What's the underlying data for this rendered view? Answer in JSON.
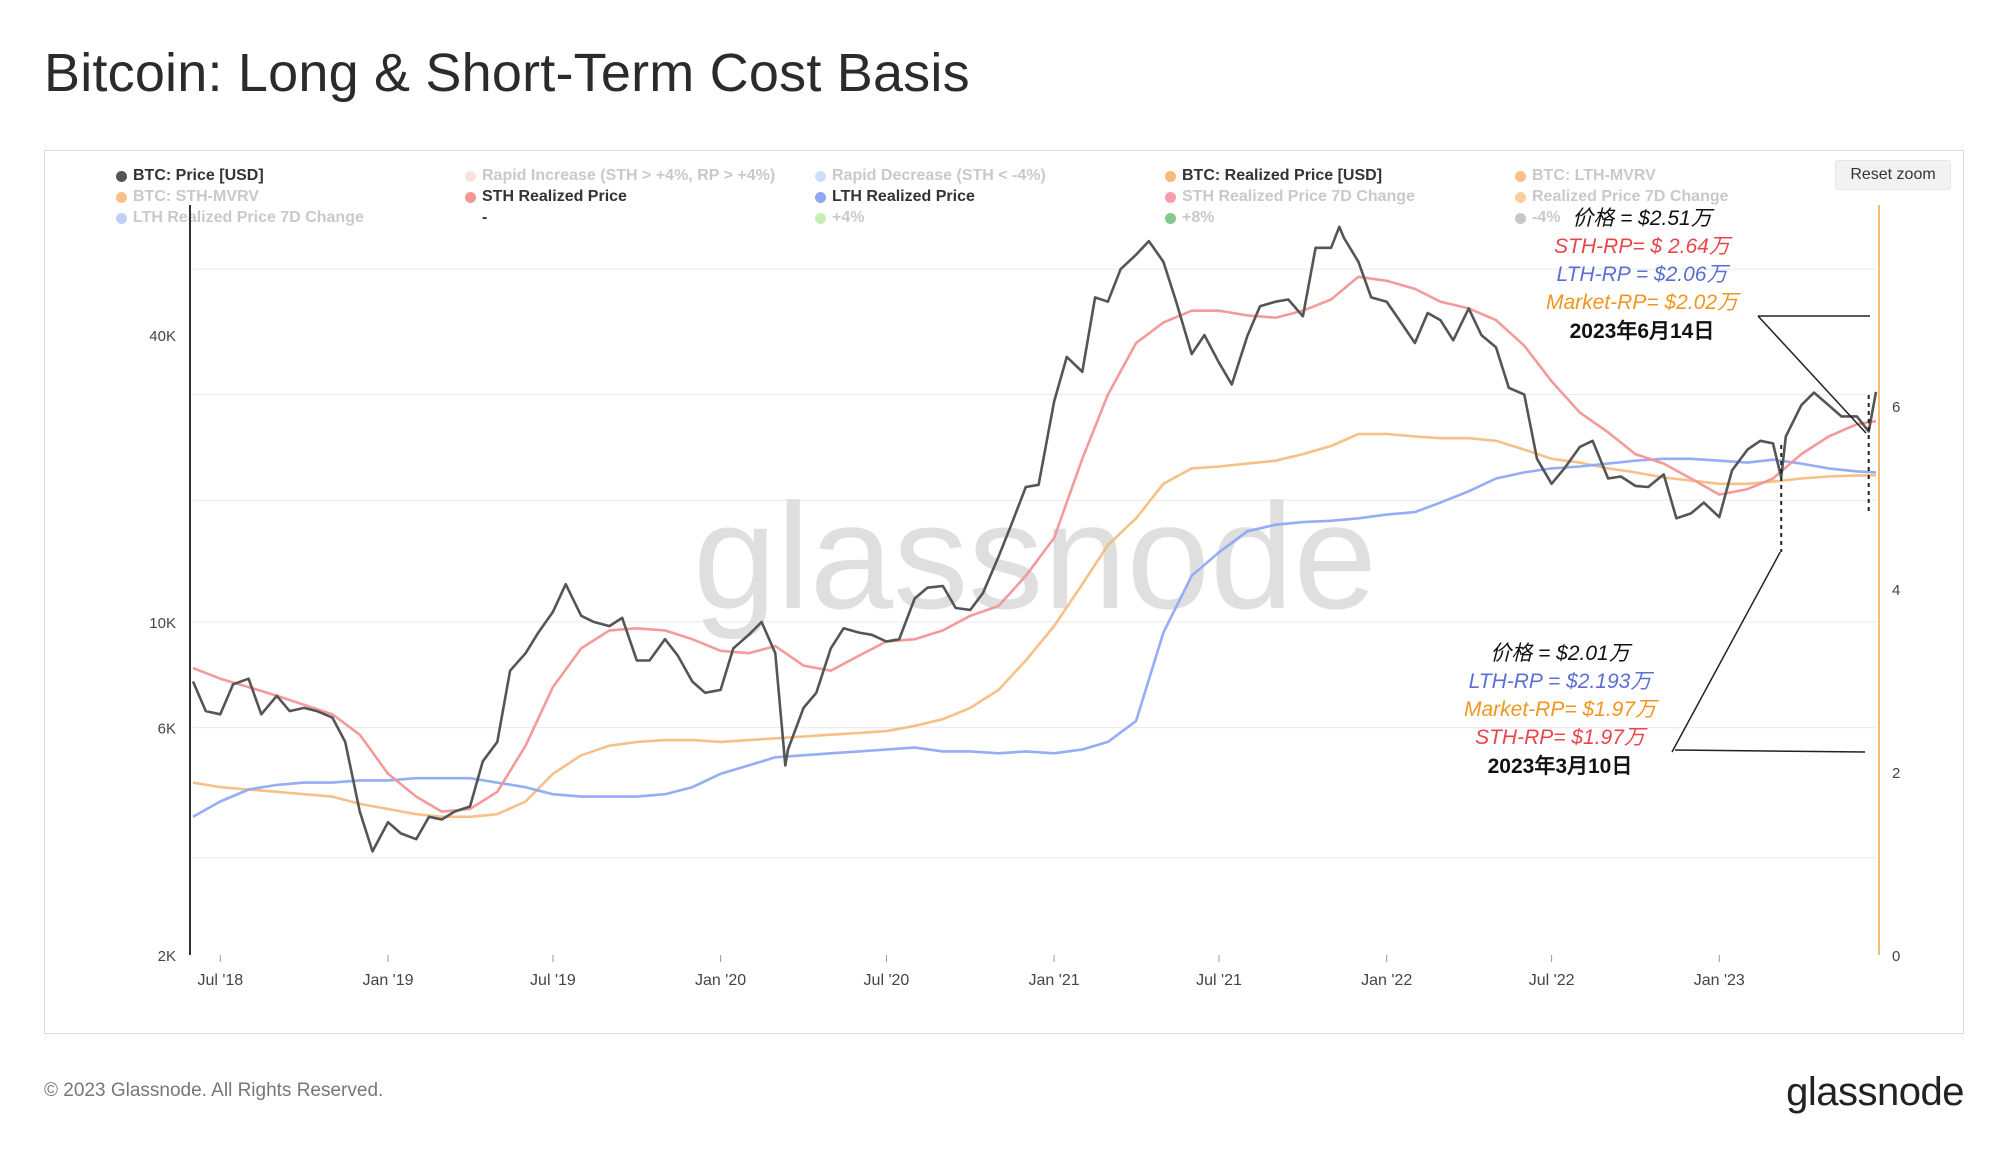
{
  "title": "Bitcoin: Long & Short-Term Cost Basis",
  "reset_zoom": "Reset zoom",
  "watermark": "glassnode",
  "footer": "© 2023 Glassnode. All Rights Reserved.",
  "brand": "glassnode",
  "legend": [
    {
      "label": "BTC: Price [USD]",
      "color": "#555555",
      "active": true
    },
    {
      "label": "Rapid Increase (STH > +4%, RP > +4%)",
      "color": "#f7c9c2",
      "active": false
    },
    {
      "label": "Rapid Decrease (STH < -4%)",
      "color": "#a9c3f7",
      "active": false
    },
    {
      "label": "BTC: Realized Price [USD]",
      "color": "#f5b97a",
      "active": true
    },
    {
      "label": "BTC: LTH-MVRV",
      "color": "#f08a2c",
      "active": false
    },
    {
      "label": "BTC: STH-MVRV",
      "color": "#f08a2c",
      "active": false
    },
    {
      "label": "STH Realized Price",
      "color": "#f29696",
      "active": true
    },
    {
      "label": "LTH Realized Price",
      "color": "#8fa8f5",
      "active": true
    },
    {
      "label": "STH Realized Price 7D Change",
      "color": "#f24d6b",
      "active": false
    },
    {
      "label": "Realized Price 7D Change",
      "color": "#f5a84a",
      "active": false
    },
    {
      "label": "LTH Realized Price 7D Change",
      "color": "#8fa8f5",
      "active": false
    },
    {
      "label": "-",
      "color": "#ffffff",
      "active": true
    },
    {
      "label": "+4%",
      "color": "#9be07a",
      "active": false
    },
    {
      "label": "+8%",
      "color": "#1a9b2e",
      "active": false
    },
    {
      "label": "-4%",
      "color": "#999999",
      "active": false
    }
  ],
  "annotations": {
    "june": {
      "price": "价格 = $2.51万",
      "sth": "STH-RP= $ 2.64万",
      "lth": "LTH-RP = $2.06万",
      "market": "Market-RP= $2.02万",
      "date": "2023年6月14日"
    },
    "march": {
      "price": "价格 = $2.01万",
      "lth": "LTH-RP = $2.193万",
      "market": "Market-RP= $1.97万",
      "sth": "STH-RP= $1.97万",
      "date": "2023年3月10日"
    }
  },
  "colors": {
    "price": "#555555",
    "sth": "#f29696",
    "lth": "#8fa8f5",
    "realized": "#f5b97a",
    "right_axis": "#f5b97a",
    "ann_sth": "#e8454b",
    "ann_lth": "#5a6fd6",
    "ann_market": "#f0961e"
  },
  "chart_data": {
    "type": "line",
    "title": "Bitcoin: Long & Short-Term Cost Basis",
    "x_ticks": [
      "Jul '18",
      "Jan '19",
      "Jul '19",
      "Jan '20",
      "Jul '20",
      "Jan '21",
      "Jul '21",
      "Jan '22",
      "Jul '22",
      "Jan '23"
    ],
    "y_left": {
      "scale": "log",
      "ticks": [
        "2K",
        "6K",
        "10K",
        "40K"
      ],
      "tick_values": [
        2000,
        6000,
        10000,
        40000
      ],
      "range": [
        2000,
        75000
      ]
    },
    "y_right": {
      "ticks": [
        "0",
        "2",
        "4",
        "6"
      ],
      "range": [
        0,
        8.2
      ]
    },
    "x_range": [
      "2018-06-01",
      "2023-06-22"
    ],
    "grid": true,
    "legend_position": "top",
    "series": [
      {
        "name": "BTC: Price [USD]",
        "dates": [
          "2018-06-01",
          "2018-06-15",
          "2018-07-01",
          "2018-07-15",
          "2018-08-01",
          "2018-08-15",
          "2018-09-01",
          "2018-09-15",
          "2018-10-01",
          "2018-10-15",
          "2018-11-01",
          "2018-11-15",
          "2018-12-01",
          "2018-12-15",
          "2019-01-01",
          "2019-01-15",
          "2019-02-01",
          "2019-02-15",
          "2019-03-01",
          "2019-03-15",
          "2019-04-01",
          "2019-04-15",
          "2019-05-01",
          "2019-05-15",
          "2019-06-01",
          "2019-06-15",
          "2019-07-01",
          "2019-07-15",
          "2019-08-01",
          "2019-08-15",
          "2019-09-01",
          "2019-09-15",
          "2019-10-01",
          "2019-10-15",
          "2019-11-01",
          "2019-11-15",
          "2019-12-01",
          "2019-12-15",
          "2020-01-01",
          "2020-01-15",
          "2020-02-01",
          "2020-02-15",
          "2020-03-01",
          "2020-03-12",
          "2020-03-15",
          "2020-04-01",
          "2020-04-15",
          "2020-05-01",
          "2020-05-15",
          "2020-06-01",
          "2020-06-15",
          "2020-07-01",
          "2020-07-15",
          "2020-08-01",
          "2020-08-15",
          "2020-09-01",
          "2020-09-15",
          "2020-10-01",
          "2020-10-15",
          "2020-11-01",
          "2020-11-15",
          "2020-12-01",
          "2020-12-15",
          "2021-01-01",
          "2021-01-15",
          "2021-02-01",
          "2021-02-15",
          "2021-03-01",
          "2021-03-15",
          "2021-04-01",
          "2021-04-15",
          "2021-05-01",
          "2021-05-15",
          "2021-06-01",
          "2021-06-15",
          "2021-07-01",
          "2021-07-15",
          "2021-08-01",
          "2021-08-15",
          "2021-09-01",
          "2021-09-15",
          "2021-10-01",
          "2021-10-15",
          "2021-11-01",
          "2021-11-10",
          "2021-11-15",
          "2021-12-01",
          "2021-12-15",
          "2022-01-01",
          "2022-01-15",
          "2022-02-01",
          "2022-02-15",
          "2022-03-01",
          "2022-03-15",
          "2022-04-01",
          "2022-04-15",
          "2022-05-01",
          "2022-05-15",
          "2022-06-01",
          "2022-06-15",
          "2022-07-01",
          "2022-07-15",
          "2022-08-01",
          "2022-08-15",
          "2022-09-01",
          "2022-09-15",
          "2022-10-01",
          "2022-10-15",
          "2022-11-01",
          "2022-11-15",
          "2022-12-01",
          "2022-12-15",
          "2023-01-01",
          "2023-01-15",
          "2023-02-01",
          "2023-02-15",
          "2023-03-01",
          "2023-03-10",
          "2023-03-15",
          "2023-04-01",
          "2023-04-15",
          "2023-05-01",
          "2023-05-15",
          "2023-06-01",
          "2023-06-14",
          "2023-06-22"
        ],
        "values": [
          7500,
          6500,
          6400,
          7400,
          7600,
          6400,
          7000,
          6500,
          6600,
          6500,
          6300,
          5600,
          4000,
          3300,
          3800,
          3600,
          3500,
          3900,
          3850,
          4000,
          4100,
          5100,
          5600,
          7900,
          8600,
          9500,
          10500,
          12000,
          10300,
          10000,
          9800,
          10200,
          8300,
          8300,
          9200,
          8500,
          7500,
          7100,
          7200,
          8800,
          9400,
          10000,
          8600,
          5000,
          5400,
          6600,
          7100,
          8800,
          9700,
          9500,
          9400,
          9100,
          9200,
          11200,
          11800,
          11900,
          10700,
          10600,
          11500,
          13700,
          16000,
          19200,
          19400,
          29000,
          36000,
          33500,
          48000,
          47000,
          55000,
          59000,
          63000,
          57000,
          47000,
          36500,
          40000,
          35000,
          31500,
          39800,
          46000,
          47000,
          47500,
          43800,
          61000,
          61000,
          67500,
          64000,
          57000,
          48000,
          47000,
          43000,
          38500,
          44500,
          43000,
          39000,
          45500,
          40000,
          37700,
          31000,
          30000,
          22000,
          19500,
          21000,
          23300,
          24000,
          20000,
          20200,
          19300,
          19200,
          20400,
          16500,
          16900,
          17800,
          16600,
          20800,
          23000,
          24000,
          23700,
          20100,
          24500,
          28500,
          30300,
          28500,
          27000,
          27000,
          25100,
          30400
        ]
      },
      {
        "name": "STH Realized Price",
        "dates": [
          "2018-06-01",
          "2018-07-01",
          "2018-08-01",
          "2018-09-01",
          "2018-10-01",
          "2018-11-01",
          "2018-12-01",
          "2019-01-01",
          "2019-02-01",
          "2019-03-01",
          "2019-04-01",
          "2019-05-01",
          "2019-06-01",
          "2019-07-01",
          "2019-08-01",
          "2019-09-01",
          "2019-10-01",
          "2019-11-01",
          "2019-12-01",
          "2020-01-01",
          "2020-02-01",
          "2020-03-01",
          "2020-04-01",
          "2020-05-01",
          "2020-06-01",
          "2020-07-01",
          "2020-08-01",
          "2020-09-01",
          "2020-10-01",
          "2020-11-01",
          "2020-12-01",
          "2021-01-01",
          "2021-02-01",
          "2021-03-01",
          "2021-04-01",
          "2021-05-01",
          "2021-06-01",
          "2021-07-01",
          "2021-08-01",
          "2021-09-01",
          "2021-10-01",
          "2021-11-01",
          "2021-12-01",
          "2022-01-01",
          "2022-02-01",
          "2022-03-01",
          "2022-04-01",
          "2022-05-01",
          "2022-06-01",
          "2022-07-01",
          "2022-08-01",
          "2022-09-01",
          "2022-10-01",
          "2022-11-01",
          "2022-12-01",
          "2023-01-01",
          "2023-02-01",
          "2023-03-01",
          "2023-04-01",
          "2023-05-01",
          "2023-06-01",
          "2023-06-22"
        ],
        "values": [
          8000,
          7600,
          7300,
          7000,
          6700,
          6400,
          5800,
          4800,
          4300,
          4000,
          4050,
          4400,
          5500,
          7300,
          8800,
          9600,
          9700,
          9600,
          9200,
          8700,
          8600,
          8900,
          8100,
          7900,
          8500,
          9100,
          9200,
          9600,
          10300,
          10800,
          12500,
          15000,
          22000,
          30000,
          38500,
          42500,
          45000,
          45000,
          44000,
          43500,
          45000,
          47500,
          53000,
          52000,
          50000,
          47000,
          45500,
          43000,
          38000,
          32000,
          27500,
          25000,
          22500,
          21500,
          20000,
          18500,
          19000,
          20000,
          22500,
          24500,
          26000,
          26400
        ]
      },
      {
        "name": "LTH Realized Price",
        "dates": [
          "2018-06-01",
          "2018-07-01",
          "2018-08-01",
          "2018-09-01",
          "2018-10-01",
          "2018-11-01",
          "2018-12-01",
          "2019-01-01",
          "2019-02-01",
          "2019-03-01",
          "2019-04-01",
          "2019-05-01",
          "2019-06-01",
          "2019-07-01",
          "2019-08-01",
          "2019-09-01",
          "2019-10-01",
          "2019-11-01",
          "2019-12-01",
          "2020-01-01",
          "2020-02-01",
          "2020-03-01",
          "2020-04-01",
          "2020-05-01",
          "2020-06-01",
          "2020-07-01",
          "2020-08-01",
          "2020-09-01",
          "2020-10-01",
          "2020-11-01",
          "2020-12-01",
          "2021-01-01",
          "2021-02-01",
          "2021-03-01",
          "2021-04-01",
          "2021-05-01",
          "2021-06-01",
          "2021-07-01",
          "2021-08-01",
          "2021-09-01",
          "2021-10-01",
          "2021-11-01",
          "2021-12-01",
          "2022-01-01",
          "2022-02-01",
          "2022-03-01",
          "2022-04-01",
          "2022-05-01",
          "2022-06-01",
          "2022-07-01",
          "2022-08-01",
          "2022-09-01",
          "2022-10-01",
          "2022-11-01",
          "2022-12-01",
          "2023-01-01",
          "2023-02-01",
          "2023-03-01",
          "2023-04-01",
          "2023-05-01",
          "2023-06-01",
          "2023-06-22"
        ],
        "values": [
          3900,
          4200,
          4450,
          4550,
          4600,
          4600,
          4650,
          4650,
          4700,
          4700,
          4700,
          4600,
          4500,
          4350,
          4300,
          4300,
          4300,
          4350,
          4500,
          4800,
          5000,
          5200,
          5250,
          5300,
          5350,
          5400,
          5450,
          5350,
          5350,
          5300,
          5350,
          5300,
          5400,
          5600,
          6200,
          9500,
          12500,
          14000,
          15500,
          16000,
          16200,
          16300,
          16500,
          16800,
          17000,
          17800,
          18800,
          20000,
          20600,
          21000,
          21200,
          21500,
          21800,
          22000,
          22000,
          21800,
          21600,
          21900,
          21500,
          21000,
          20700,
          20600
        ]
      },
      {
        "name": "BTC: Realized Price [USD]",
        "dates": [
          "2018-06-01",
          "2018-07-01",
          "2018-08-01",
          "2018-09-01",
          "2018-10-01",
          "2018-11-01",
          "2018-12-01",
          "2019-01-01",
          "2019-02-01",
          "2019-03-01",
          "2019-04-01",
          "2019-05-01",
          "2019-06-01",
          "2019-07-01",
          "2019-08-01",
          "2019-09-01",
          "2019-10-01",
          "2019-11-01",
          "2019-12-01",
          "2020-01-01",
          "2020-02-01",
          "2020-03-01",
          "2020-04-01",
          "2020-05-01",
          "2020-06-01",
          "2020-07-01",
          "2020-08-01",
          "2020-09-01",
          "2020-10-01",
          "2020-11-01",
          "2020-12-01",
          "2021-01-01",
          "2021-02-01",
          "2021-03-01",
          "2021-04-01",
          "2021-05-01",
          "2021-06-01",
          "2021-07-01",
          "2021-08-01",
          "2021-09-01",
          "2021-10-01",
          "2021-11-01",
          "2021-12-01",
          "2022-01-01",
          "2022-02-01",
          "2022-03-01",
          "2022-04-01",
          "2022-05-01",
          "2022-06-01",
          "2022-07-01",
          "2022-08-01",
          "2022-09-01",
          "2022-10-01",
          "2022-11-01",
          "2022-12-01",
          "2023-01-01",
          "2023-02-01",
          "2023-03-01",
          "2023-04-01",
          "2023-05-01",
          "2023-06-01",
          "2023-06-22"
        ],
        "values": [
          4600,
          4500,
          4450,
          4400,
          4350,
          4300,
          4150,
          4050,
          3950,
          3900,
          3900,
          3950,
          4200,
          4800,
          5250,
          5500,
          5600,
          5650,
          5650,
          5600,
          5650,
          5700,
          5750,
          5800,
          5850,
          5900,
          6050,
          6250,
          6600,
          7200,
          8300,
          9800,
          12000,
          14500,
          16500,
          19500,
          21000,
          21200,
          21500,
          21800,
          22500,
          23400,
          24800,
          24800,
          24500,
          24300,
          24300,
          24000,
          23000,
          22000,
          21600,
          21000,
          20600,
          20100,
          19800,
          19500,
          19500,
          19700,
          20000,
          20200,
          20300,
          20300
        ]
      }
    ]
  }
}
